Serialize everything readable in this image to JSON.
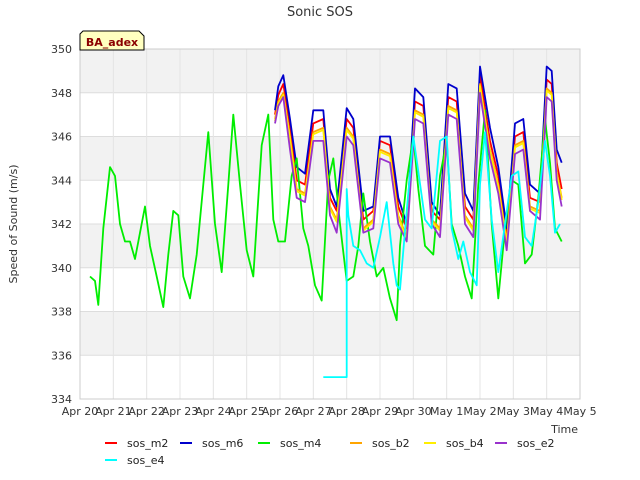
{
  "chart_data": {
    "type": "line",
    "title": "Sonic SOS",
    "badge": "BA_adex",
    "xlabel": "Time",
    "ylabel": "Speed of Sound (m/s)",
    "ylim": [
      334,
      350
    ],
    "yticks": [
      334,
      336,
      338,
      340,
      342,
      344,
      346,
      348,
      350
    ],
    "xlim": [
      0,
      15
    ],
    "xtick_labels": [
      "Apr 20",
      "Apr 21",
      "Apr 22",
      "Apr 23",
      "Apr 24",
      "Apr 25",
      "Apr 26",
      "Apr 27",
      "Apr 28",
      "Apr 29",
      "Apr 30",
      "May 1",
      "May 2",
      "May 3",
      "May 4",
      "May 5"
    ],
    "grid": true,
    "legend_position": "bottom",
    "series": [
      {
        "name": "sos_m2",
        "color": "#ff0000",
        "x": [
          5.85,
          5.95,
          6.1,
          6.3,
          6.5,
          6.75,
          7.0,
          7.3,
          7.5,
          7.7,
          8.0,
          8.2,
          8.5,
          8.8,
          9.0,
          9.3,
          9.55,
          9.8,
          10.05,
          10.3,
          10.55,
          10.8,
          11.05,
          11.3,
          11.55,
          11.8,
          12.0,
          12.3,
          12.55,
          12.8,
          13.05,
          13.3,
          13.5,
          13.8,
          14.0,
          14.15,
          14.3,
          14.45
        ],
        "y": [
          347.0,
          347.9,
          348.4,
          346.5,
          344.0,
          343.8,
          346.6,
          346.8,
          343.2,
          342.6,
          346.8,
          346.4,
          342.2,
          342.6,
          345.8,
          345.6,
          342.8,
          341.8,
          347.6,
          347.4,
          342.6,
          342.2,
          347.8,
          347.6,
          342.8,
          342.2,
          348.8,
          345.8,
          344.2,
          341.6,
          346.0,
          346.2,
          343.2,
          343.0,
          348.6,
          348.4,
          344.8,
          343.6
        ]
      },
      {
        "name": "sos_m6",
        "color": "#0000cc",
        "x": [
          5.85,
          5.95,
          6.1,
          6.3,
          6.5,
          6.75,
          7.0,
          7.3,
          7.5,
          7.7,
          8.0,
          8.2,
          8.5,
          8.8,
          9.0,
          9.3,
          9.55,
          9.8,
          10.05,
          10.3,
          10.55,
          10.8,
          11.05,
          11.3,
          11.55,
          11.8,
          12.0,
          12.3,
          12.55,
          12.8,
          13.05,
          13.3,
          13.5,
          13.8,
          14.0,
          14.15,
          14.3,
          14.45
        ],
        "y": [
          347.2,
          348.3,
          348.8,
          346.8,
          344.6,
          344.3,
          347.2,
          347.2,
          343.6,
          342.8,
          347.3,
          346.8,
          342.6,
          342.8,
          346.0,
          346.0,
          343.2,
          342.0,
          348.2,
          347.8,
          343.0,
          342.4,
          348.4,
          348.2,
          343.4,
          342.6,
          349.2,
          346.4,
          344.6,
          341.8,
          346.6,
          346.8,
          343.8,
          343.4,
          349.2,
          349.0,
          345.4,
          344.8
        ]
      },
      {
        "name": "sos_m4",
        "color": "#00ee00",
        "x": [
          0.3,
          0.45,
          0.55,
          0.7,
          0.9,
          1.05,
          1.2,
          1.35,
          1.5,
          1.65,
          1.8,
          1.95,
          2.1,
          2.3,
          2.5,
          2.65,
          2.8,
          2.95,
          3.1,
          3.3,
          3.5,
          3.7,
          3.85,
          4.05,
          4.25,
          4.45,
          4.6,
          4.8,
          5.0,
          5.2,
          5.45,
          5.65,
          5.8,
          5.95,
          6.15,
          6.35,
          6.5,
          6.7,
          6.85,
          7.05,
          7.25,
          7.45,
          7.6,
          7.8,
          8.0,
          8.2,
          8.35,
          8.5,
          8.7,
          8.9,
          9.1,
          9.3,
          9.5,
          9.6,
          9.8,
          10.0,
          10.15,
          10.35,
          10.6,
          10.8,
          11.0,
          11.15,
          11.35,
          11.55,
          11.75,
          11.95,
          12.15,
          12.35,
          12.55,
          12.75,
          12.95,
          13.15,
          13.35,
          13.55,
          13.75,
          13.95,
          14.1,
          14.25,
          14.45
        ],
        "y": [
          339.6,
          339.4,
          338.3,
          341.8,
          344.6,
          344.2,
          342.0,
          341.2,
          341.2,
          340.4,
          341.6,
          342.8,
          341.0,
          339.6,
          338.2,
          340.6,
          342.6,
          342.4,
          339.6,
          338.6,
          340.6,
          343.8,
          346.2,
          342.0,
          339.8,
          343.8,
          347.0,
          343.8,
          340.8,
          339.6,
          345.6,
          347.0,
          342.2,
          341.2,
          341.2,
          344.2,
          345.0,
          341.8,
          341.0,
          339.2,
          338.5,
          344.0,
          345.0,
          342.0,
          339.4,
          339.6,
          341.0,
          343.4,
          341.2,
          339.6,
          340.0,
          338.6,
          337.6,
          341.0,
          344.0,
          346.0,
          343.6,
          341.0,
          340.6,
          344.2,
          345.8,
          342.0,
          341.0,
          339.6,
          338.6,
          343.8,
          347.2,
          342.0,
          338.6,
          341.8,
          344.0,
          343.8,
          340.2,
          340.6,
          343.2,
          346.8,
          344.8,
          341.8,
          341.2
        ]
      },
      {
        "name": "sos_b2",
        "color": "#ffa500",
        "x": [
          5.85,
          5.95,
          6.1,
          6.3,
          6.5,
          6.75,
          7.0,
          7.3,
          7.5,
          7.7,
          8.0,
          8.2,
          8.5,
          8.8,
          9.0,
          9.3,
          9.55,
          9.8,
          10.05,
          10.3,
          10.55,
          10.8,
          11.05,
          11.3,
          11.55,
          11.8,
          12.0,
          12.3,
          12.55,
          12.8,
          13.05,
          13.3,
          13.5,
          13.8,
          14.0,
          14.15,
          14.3,
          14.45
        ],
        "y": [
          346.8,
          347.6,
          348.0,
          346.0,
          343.6,
          343.4,
          346.2,
          346.4,
          342.8,
          342.2,
          346.4,
          346.0,
          341.8,
          342.2,
          345.4,
          345.2,
          342.4,
          341.4,
          347.2,
          347.0,
          342.2,
          341.8,
          347.4,
          347.2,
          342.4,
          341.8,
          348.4,
          345.4,
          343.8,
          341.2,
          345.6,
          345.8,
          342.8,
          342.6,
          348.2,
          348.0,
          344.4,
          343.2
        ]
      },
      {
        "name": "sos_b4",
        "color": "#ffee00",
        "x": [
          5.85,
          5.95,
          6.1,
          6.3,
          6.5,
          6.75,
          7.0,
          7.3,
          7.5,
          7.7,
          8.0,
          8.2,
          8.5,
          8.8,
          9.0,
          9.3,
          9.55,
          9.8,
          10.05,
          10.3,
          10.55,
          10.8,
          11.05,
          11.3,
          11.55,
          11.8,
          12.0,
          12.3,
          12.55,
          12.8,
          13.05,
          13.3,
          13.5,
          13.8,
          14.0,
          14.15,
          14.3,
          14.45
        ],
        "y": [
          346.7,
          347.5,
          347.9,
          345.9,
          343.5,
          343.3,
          346.1,
          346.3,
          342.7,
          342.1,
          346.3,
          345.9,
          341.7,
          342.1,
          345.3,
          345.1,
          342.3,
          341.3,
          347.1,
          346.9,
          342.1,
          341.7,
          347.3,
          347.1,
          342.3,
          341.7,
          348.3,
          345.3,
          343.7,
          341.1,
          345.5,
          345.7,
          342.7,
          342.5,
          348.1,
          347.9,
          344.3,
          343.1
        ]
      },
      {
        "name": "sos_e2",
        "color": "#9932cc",
        "x": [
          5.85,
          5.95,
          6.1,
          6.3,
          6.5,
          6.75,
          7.0,
          7.3,
          7.5,
          7.7,
          8.0,
          8.2,
          8.5,
          8.8,
          9.0,
          9.3,
          9.55,
          9.8,
          10.05,
          10.3,
          10.55,
          10.8,
          11.05,
          11.3,
          11.55,
          11.8,
          12.0,
          12.3,
          12.55,
          12.8,
          13.05,
          13.3,
          13.5,
          13.8,
          14.0,
          14.15,
          14.3,
          14.45
        ],
        "y": [
          346.6,
          347.4,
          347.8,
          345.4,
          343.2,
          343.0,
          345.8,
          345.8,
          342.4,
          341.6,
          346.0,
          345.6,
          341.6,
          341.8,
          345.0,
          344.8,
          342.0,
          341.2,
          346.8,
          346.6,
          342.0,
          341.4,
          347.0,
          346.8,
          342.0,
          341.4,
          348.0,
          345.0,
          343.4,
          340.8,
          345.2,
          345.4,
          342.6,
          342.2,
          347.8,
          347.6,
          344.0,
          342.8
        ]
      },
      {
        "name": "sos_e4",
        "color": "#00ffff",
        "x": [
          7.3,
          8.0,
          8.0,
          8.05,
          8.2,
          8.4,
          8.6,
          8.8,
          9.0,
          9.2,
          9.4,
          9.5,
          9.6,
          9.8,
          10.0,
          10.15,
          10.35,
          10.55,
          10.8,
          11.0,
          11.15,
          11.35,
          11.5,
          11.7,
          11.9,
          12.0,
          12.15,
          12.35,
          12.55,
          12.75,
          12.95,
          13.15,
          13.35,
          13.55,
          13.75,
          13.95,
          14.1,
          14.25,
          14.4
        ],
        "y": [
          335.0,
          335.0,
          343.6,
          342.4,
          341.0,
          340.8,
          340.2,
          340.0,
          341.4,
          343.0,
          340.2,
          339.2,
          339.0,
          342.6,
          346.0,
          344.4,
          342.2,
          341.8,
          345.8,
          346.0,
          341.8,
          340.4,
          341.2,
          339.8,
          339.2,
          343.8,
          346.2,
          342.2,
          339.8,
          342.0,
          344.2,
          344.4,
          341.4,
          341.0,
          343.0,
          345.8,
          344.2,
          341.6,
          342.0
        ]
      }
    ]
  }
}
